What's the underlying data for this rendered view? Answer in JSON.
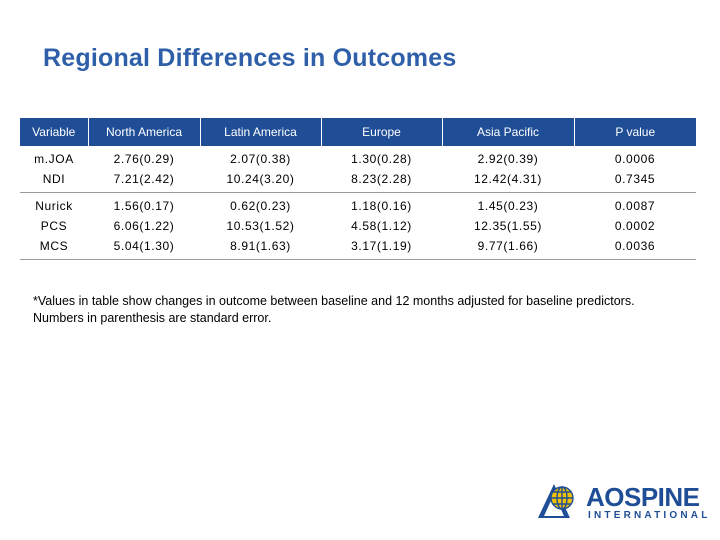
{
  "title": "Regional Differences in Outcomes",
  "table": {
    "headers": [
      "Variable",
      "North America",
      "Latin America",
      "Europe",
      "Asia Pacific",
      "P value"
    ],
    "rows": [
      {
        "variable": [
          "m.JOA",
          "NDI"
        ],
        "north_america": [
          "2.76(0.29)",
          "7.21(2.42)"
        ],
        "latin_america": [
          "2.07(0.38)",
          "10.24(3.20)"
        ],
        "europe": [
          "1.30(0.28)",
          "8.23(2.28)"
        ],
        "asia_pacific": [
          "2.92(0.39)",
          "12.42(4.31)"
        ],
        "p_value": [
          "0.0006",
          "0.7345"
        ]
      },
      {
        "variable": [
          "Nurick",
          "PCS",
          "MCS"
        ],
        "north_america": [
          "1.56(0.17)",
          "6.06(1.22)",
          "5.04(1.30)"
        ],
        "latin_america": [
          "0.62(0.23)",
          "10.53(1.52)",
          "8.91(1.63)"
        ],
        "europe": [
          "1.18(0.16)",
          "4.58(1.12)",
          "3.17(1.19)"
        ],
        "asia_pacific": [
          "1.45(0.23)",
          "12.35(1.55)",
          "9.77(1.66)"
        ],
        "p_value": [
          "0.0087",
          "0.0002",
          "0.0036"
        ]
      }
    ]
  },
  "footnote": "*Values in table show changes in outcome between baseline and 12 months adjusted for baseline predictors.  Numbers in parenthesis are standard error.",
  "logo": {
    "word1": "AOSPINE",
    "word2": "INTERNATIONAL"
  },
  "colors": {
    "title": "#2e5fa8",
    "header_bg": "#1f4e96",
    "logo_blue": "#1f4e96",
    "logo_yellow": "#f2c200"
  }
}
